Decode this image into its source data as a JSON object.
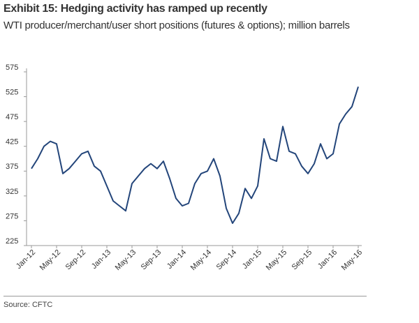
{
  "chart_data": {
    "type": "line",
    "title": "Exhibit 15: Hedging activity has ramped up recently",
    "subtitle": "WTI producer/merchant/user short positions (futures & options); million barrels",
    "source": "Source: CFTC",
    "categories": [
      "Jan-12",
      null,
      null,
      null,
      "May-12",
      null,
      null,
      null,
      "Sep-12",
      null,
      null,
      null,
      "Jan-13",
      null,
      null,
      null,
      "May-13",
      null,
      null,
      null,
      "Sep-13",
      null,
      null,
      null,
      "Jan-14",
      null,
      null,
      null,
      "May-14",
      null,
      null,
      null,
      "Sep-14",
      null,
      null,
      null,
      "Jan-15",
      null,
      null,
      null,
      "May-15",
      null,
      null,
      null,
      "Sep-15",
      null,
      null,
      null,
      "Jan-16",
      null,
      null,
      null,
      "May-16"
    ],
    "series": [
      {
        "name": "WTI producer/merchant/user short positions",
        "color": "#23457a",
        "values": [
          380,
          400,
          425,
          435,
          430,
          370,
          380,
          395,
          410,
          415,
          385,
          375,
          345,
          315,
          305,
          295,
          350,
          365,
          380,
          390,
          380,
          395,
          360,
          320,
          305,
          310,
          350,
          370,
          375,
          400,
          365,
          300,
          270,
          290,
          340,
          320,
          345,
          440,
          400,
          395,
          465,
          415,
          410,
          385,
          370,
          390,
          430,
          400,
          410,
          470,
          490,
          505,
          545
        ]
      }
    ],
    "ylim": [
      225,
      575
    ],
    "yticks": [
      225,
      275,
      325,
      375,
      425,
      475,
      525,
      575
    ]
  }
}
